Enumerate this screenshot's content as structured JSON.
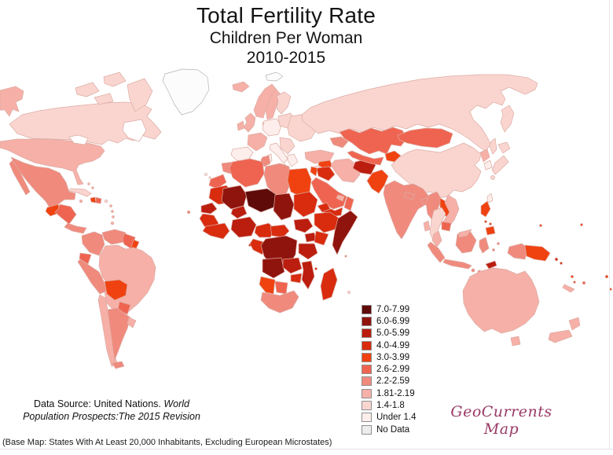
{
  "title": {
    "line1": "Total Fertility Rate",
    "line2": "Children Per Woman",
    "line3": "2010-2015"
  },
  "legend": {
    "items": [
      {
        "label": "7.0-7.99",
        "color": "#5e0b09"
      },
      {
        "label": "6.0-6.99",
        "color": "#8f140d"
      },
      {
        "label": "5.0-5.99",
        "color": "#bb1d0e"
      },
      {
        "label": "4.0-4.99",
        "color": "#d92b0e"
      },
      {
        "label": "3.0-3.99",
        "color": "#f04210"
      },
      {
        "label": "2.6-2.99",
        "color": "#ef6450"
      },
      {
        "label": "2.2-2.59",
        "color": "#f08a7d"
      },
      {
        "label": "1.81-2.19",
        "color": "#f6b0a7"
      },
      {
        "label": "1.4-1.8",
        "color": "#fad5d0"
      },
      {
        "label": "Under 1.4",
        "color": "#fdeeeb"
      },
      {
        "label": "No Data",
        "color": "#ececec"
      }
    ]
  },
  "map": {
    "ocean_color": "#ffffff",
    "border_color": "#dcaba3",
    "no_data_fill": "#fcfcfc",
    "no_data_stroke": "#b3b3b3",
    "regions": {
      "alaska": "1.81-2.19",
      "canada": "1.4-1.8",
      "arctic-islands": "1.4-1.8",
      "greenland": "No Data",
      "svalbard": "No Data",
      "usa": "1.81-2.19",
      "mexico": "2.2-2.59",
      "guatemala": "3.0-3.99",
      "honduras-nicaragua": "2.6-2.99",
      "costa-rica-panama": "2.2-2.59",
      "cuba": "1.4-1.8",
      "haiti": "3.0-3.99",
      "dominican-republic": "2.6-2.99",
      "jamaica": "1.81-2.19",
      "puerto-rico": "1.4-1.8",
      "bahamas": "1.81-2.19",
      "lesser-antilles": "1.81-2.19",
      "trinidad": "1.81-2.19",
      "colombia": "2.2-2.59",
      "venezuela": "2.2-2.59",
      "guyanas": "2.6-2.99",
      "french-guiana": "3.0-3.99",
      "brazil": "1.81-2.19",
      "ecuador": "2.6-2.99",
      "peru": "2.2-2.59",
      "bolivia": "3.0-3.99",
      "paraguay": "2.6-2.99",
      "chile": "1.81-2.19",
      "argentina": "2.2-2.59",
      "uruguay": "1.81-2.19",
      "cape-verde": "2.2-2.59",
      "canary-islands": "Under 1.4",
      "sao-tome": "4.0-4.99",
      "seychelles": "2.2-2.59",
      "comoros": "4.0-4.99",
      "mauritius": "1.4-1.8",
      "iceland": "1.81-2.19",
      "norway": "1.81-2.19",
      "sweden": "1.81-2.19",
      "finland": "1.4-1.8",
      "denmark": "1.4-1.8",
      "uk": "1.81-2.19",
      "ireland": "1.81-2.19",
      "france": "1.81-2.19",
      "iberia": "Under 1.4",
      "germany-central-europe": "Under 1.4",
      "italy": "Under 1.4",
      "sicily": "Under 1.4",
      "sardinia": "Under 1.4",
      "poland-baltics": "1.4-1.8",
      "eastern-europe": "1.4-1.8",
      "balkans": "1.4-1.8",
      "greece": "Under 1.4",
      "crete": "Under 1.4",
      "russia": "1.4-1.8",
      "turkey": "1.81-2.19",
      "cyprus": "Under 1.4",
      "caucasus": "2.2-2.59",
      "kazakhstan": "2.6-2.99",
      "uzbekistan-turkmenistan": "2.6-2.99",
      "tajikistan-kyrgyzstan": "3.0-3.99",
      "mongolia": "2.6-2.99",
      "china": "1.4-1.8",
      "north-korea": "1.81-2.19",
      "south-korea": "Under 1.4",
      "japan": "1.4-1.8",
      "taiwan": "Under 1.4",
      "india": "2.2-2.59",
      "nepal": "2.2-2.59",
      "bangladesh": "2.2-2.59",
      "sri-lanka": "1.81-2.19",
      "pakistan": "3.0-3.99",
      "afghanistan": "5.0-5.99",
      "iran": "1.81-2.19",
      "iraq": "4.0-4.99",
      "syria": "3.0-3.99",
      "jordan-israel": "3.0-3.99",
      "saudi-arabia": "2.6-2.99",
      "yemen": "4.0-4.99",
      "oman": "2.6-2.99",
      "uae-qatar": "1.81-2.19",
      "myanmar": "2.2-2.59",
      "thailand": "1.4-1.8",
      "laos": "3.0-3.99",
      "vietnam": "1.81-2.19",
      "cambodia": "2.6-2.99",
      "malaysia": "1.81-2.19",
      "indonesia": "2.2-2.59",
      "timor-leste": "5.0-5.99",
      "philippines": "3.0-3.99",
      "papua-new-guinea": "3.0-3.99",
      "solomon-islands": "4.0-4.99",
      "vanuatu": "3.0-3.99",
      "fiji": "2.6-2.99",
      "new-caledonia": "1.81-2.19",
      "micronesia": "3.0-3.99",
      "australia": "1.81-2.19",
      "new-zealand": "1.81-2.19",
      "morocco": "2.2-2.59",
      "western-sahara": "2.6-2.99",
      "algeria": "2.6-2.99",
      "tunisia": "2.2-2.59",
      "libya": "2.2-2.59",
      "egypt": "3.0-3.99",
      "mauritania": "4.0-4.99",
      "senegal": "5.0-5.99",
      "guinea-coast": "4.0-4.99",
      "mali": "6.0-6.99",
      "burkina-faso": "5.0-5.99",
      "niger": "7.0-7.99",
      "chad": "6.0-6.99",
      "sudan": "4.0-4.99",
      "eritrea": "4.0-4.99",
      "ethiopia": "4.0-4.99",
      "somalia": "6.0-6.99",
      "ivory-coast-ghana": "4.0-4.99",
      "nigeria": "5.0-5.99",
      "cameroon": "4.0-4.99",
      "central-african-republic": "4.0-4.99",
      "south-sudan": "5.0-5.99",
      "uganda": "5.0-5.99",
      "kenya": "4.0-4.99",
      "gabon-congo": "4.0-4.99",
      "dr-congo": "6.0-6.99",
      "tanzania": "5.0-5.99",
      "angola": "6.0-6.99",
      "zambia": "5.0-5.99",
      "mozambique": "5.0-5.99",
      "zimbabwe": "4.0-4.99",
      "namibia": "3.0-3.99",
      "botswana": "2.6-2.99",
      "south-africa": "2.2-2.59",
      "madagascar": "4.0-4.99"
    }
  },
  "source": {
    "line1_normal": "Data Source: United Nations. ",
    "line1_italic": "World",
    "line2_italic": "Population Prospects:The 2015 Revision"
  },
  "credit": {
    "text": "GeoCurrents Map",
    "color": "#993a66"
  },
  "footnote": "(Base Map: States With At Least 20,000 Inhabitants, Excluding European Microstates)"
}
